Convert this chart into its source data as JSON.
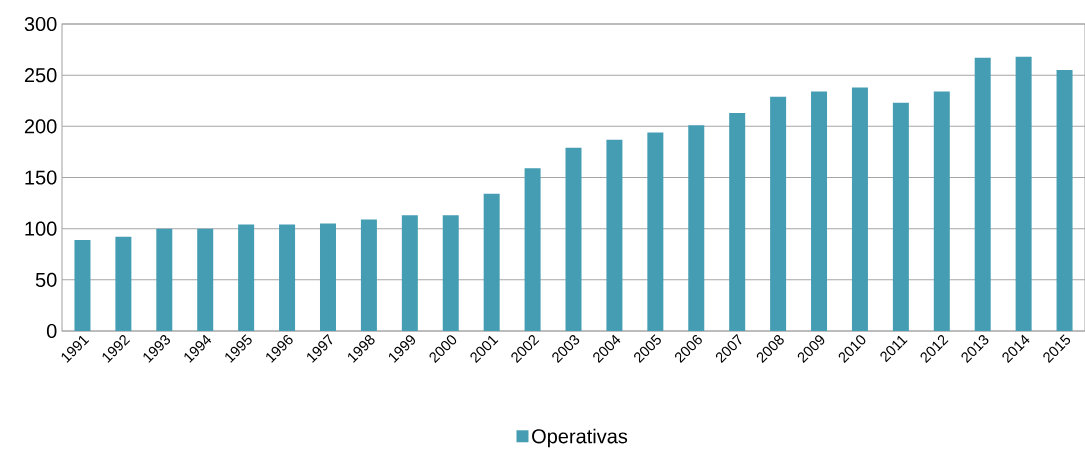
{
  "chart_data": {
    "type": "bar",
    "categories": [
      "1991",
      "1992",
      "1993",
      "1994",
      "1995",
      "1996",
      "1997",
      "1998",
      "1999",
      "2000",
      "2001",
      "2002",
      "2003",
      "2004",
      "2005",
      "2006",
      "2007",
      "2008",
      "2009",
      "2010",
      "2011",
      "2012",
      "2013",
      "2014",
      "2015"
    ],
    "series": [
      {
        "name": "Operativas",
        "color": "#449db3",
        "values": [
          89,
          92,
          100,
          100,
          104,
          104,
          105,
          109,
          113,
          113,
          134,
          159,
          179,
          187,
          194,
          201,
          213,
          229,
          234,
          238,
          223,
          234,
          267,
          268,
          255
        ]
      }
    ],
    "ylim": [
      0,
      300
    ],
    "yticks": [
      0,
      50,
      100,
      150,
      200,
      250,
      300
    ],
    "grid": "y",
    "legend": "bottom"
  }
}
